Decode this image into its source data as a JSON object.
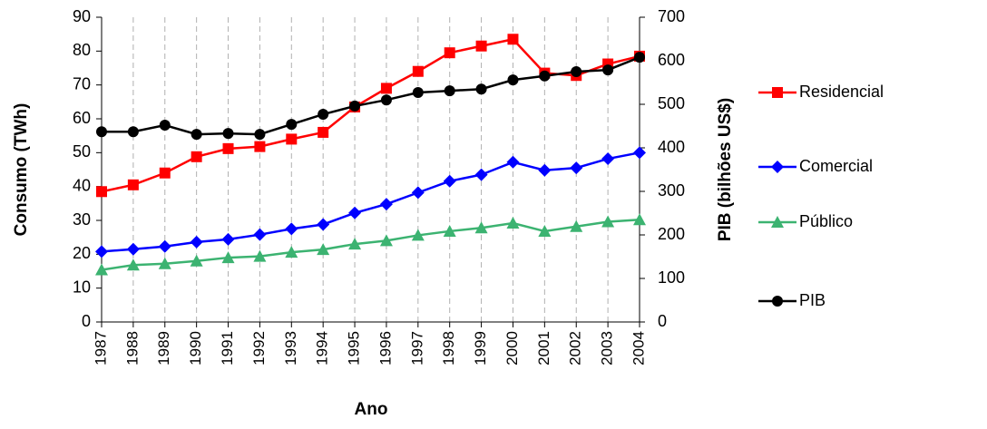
{
  "chart_data": {
    "type": "line",
    "x_label": "Ano",
    "y_label": "Consumo (TWh)",
    "y2_label": "PIB (bilhões US$)",
    "categories": [
      "1987",
      "1988",
      "1989",
      "1990",
      "1991",
      "1992",
      "1993",
      "1994",
      "1995",
      "1996",
      "1997",
      "1998",
      "1999",
      "2000",
      "2001",
      "2002",
      "2003",
      "2004"
    ],
    "ylim": [
      0,
      90
    ],
    "yticks": [
      0,
      10,
      20,
      30,
      40,
      50,
      60,
      70,
      80,
      90
    ],
    "y2lim": [
      0,
      700
    ],
    "y2ticks": [
      0,
      100,
      200,
      300,
      400,
      500,
      600,
      700
    ],
    "grid": "x-dashed",
    "legend": "right",
    "series": [
      {
        "name": "Residencial",
        "color": "#ff0000",
        "marker": "square",
        "values": [
          38.5,
          40.5,
          44,
          48.8,
          51.2,
          51.8,
          54,
          56,
          63.5,
          69,
          74,
          79.5,
          81.5,
          83.5,
          73.5,
          72.8,
          76.2,
          78.5
        ]
      },
      {
        "name": "Comercial",
        "color": "#0000ff",
        "marker": "diamond",
        "values": [
          20.8,
          21.5,
          22.3,
          23.6,
          24.4,
          25.8,
          27.5,
          28.8,
          32.2,
          34.8,
          38.2,
          41.6,
          43.5,
          47.2,
          44.8,
          45.5,
          48.2,
          50
        ]
      },
      {
        "name": "Público",
        "color": "#3cb371",
        "marker": "triangle",
        "values": [
          15.4,
          16.8,
          17.2,
          18,
          19,
          19.4,
          20.6,
          21.4,
          23,
          24,
          25.6,
          26.8,
          27.8,
          29.2,
          26.8,
          28.2,
          29.6,
          30.2
        ]
      },
      {
        "name": "PIB",
        "color": "#000000",
        "marker": "circle",
        "axis": "y2",
        "values": [
          437,
          437,
          452,
          431,
          433,
          431,
          454,
          477,
          496,
          510,
          527,
          531,
          535,
          556,
          565,
          575,
          579,
          608
        ]
      }
    ]
  }
}
